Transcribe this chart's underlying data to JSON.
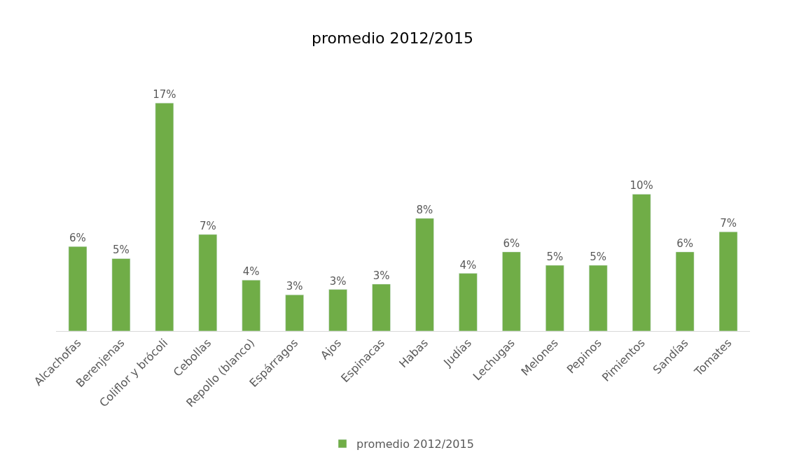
{
  "chart_data": {
    "type": "bar",
    "title": "promedio 2012/2015",
    "categories": [
      "Alcachofas",
      "Berenjenas",
      "Coliflor y brócoli",
      "Cebollas",
      "Repollo (blanco)",
      "Espárragos",
      "Ajos",
      "Espinacas",
      "Habas",
      "Judías",
      "Lechugas",
      "Melones",
      "Pepinos",
      "Pimientos",
      "Sandías",
      "Tomates"
    ],
    "series": [
      {
        "name": "promedio 2012/2015",
        "color": "#70ad47",
        "values": [
          6.3,
          5.4,
          17.0,
          7.2,
          3.8,
          2.7,
          3.1,
          3.5,
          8.4,
          4.3,
          5.9,
          4.9,
          4.9,
          10.2,
          5.9,
          7.4
        ],
        "value_labels": [
          "6%",
          "5%",
          "17%",
          "7%",
          "4%",
          "3%",
          "3%",
          "3%",
          "8%",
          "4%",
          "6%",
          "5%",
          "5%",
          "10%",
          "6%",
          "7%"
        ]
      }
    ],
    "tick_labels": "x",
    "legend": "bottom"
  }
}
